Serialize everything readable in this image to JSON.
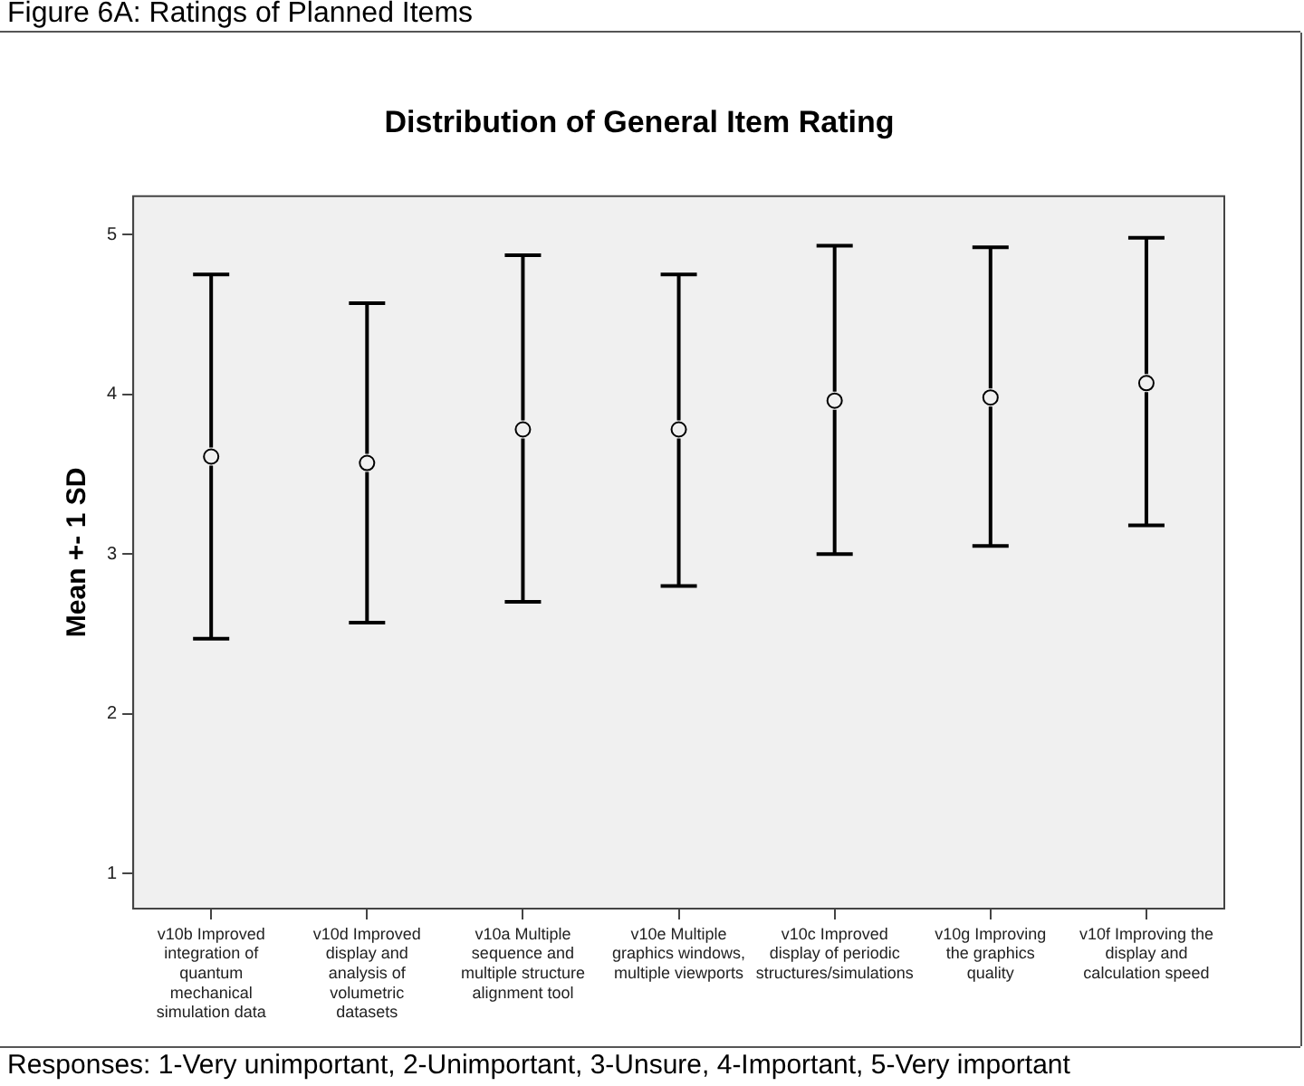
{
  "chart_data": {
    "type": "scatter",
    "title": "Distribution of General Item Rating",
    "ylabel": "Mean +- 1 SD",
    "categories": [
      "v10b Improved integration of quantum mechanical simulation data",
      "v10d Improved display and analysis of volumetric datasets",
      "v10a Multiple sequence and multiple structure alignment tool",
      "v10e Multiple graphics windows, multiple viewports",
      "v10c Improved display of periodic structures/simulations",
      "v10g Improving the graphics quality",
      "v10f Improving the display and calculation speed"
    ],
    "values": [
      3.61,
      3.57,
      3.78,
      3.78,
      3.96,
      3.98,
      4.07
    ],
    "errors": [
      [
        2.47,
        4.75
      ],
      [
        2.57,
        4.57
      ],
      [
        2.7,
        4.87
      ],
      [
        2.8,
        4.75
      ],
      [
        3.0,
        4.93
      ],
      [
        3.05,
        4.92
      ],
      [
        3.18,
        4.98
      ]
    ],
    "color": "#000000",
    "marker": "circle",
    "ylim": [
      0.78,
      5.24
    ],
    "yticks": [
      1,
      2,
      3,
      4,
      5
    ],
    "annotations": [
      "Figure 6A:  Ratings of Planned Items",
      "Responses: 1-Very unimportant, 2-Unimportant, 3-Unsure, 4-Important, 5-Very important"
    ]
  }
}
